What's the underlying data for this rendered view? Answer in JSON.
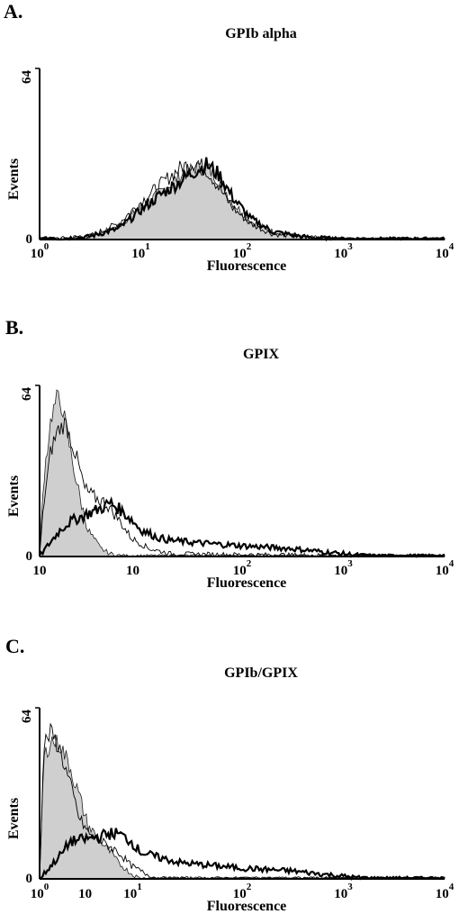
{
  "chart_data": [
    {
      "type": "line",
      "panel_letter": "A.",
      "title": "GPIb alpha",
      "xlabel": "Fluorescence",
      "ylabel": "Events",
      "xscale": "log",
      "xlim": [
        1,
        10000
      ],
      "ylim": [
        0,
        64
      ],
      "ytick_labels": [
        "0",
        "64"
      ],
      "xtick_labels": [
        {
          "base": "10",
          "exp": "0"
        },
        {
          "base": "10",
          "exp": "1"
        },
        {
          "base": "10",
          "exp": "2"
        },
        {
          "base": "10",
          "exp": "3"
        },
        {
          "base": "10",
          "exp": "4"
        }
      ],
      "series": [
        {
          "style": "filled",
          "x": [
            1,
            3,
            6,
            10,
            16,
            25,
            35,
            45,
            60,
            80,
            120,
            200,
            400,
            1000,
            10000
          ],
          "y": [
            0,
            1,
            5,
            12,
            18,
            24,
            27,
            27,
            22,
            14,
            7,
            3,
            1,
            0,
            0
          ]
        },
        {
          "style": "thin",
          "x": [
            1,
            3,
            6,
            10,
            16,
            25,
            35,
            45,
            60,
            80,
            120,
            200,
            400,
            1000,
            10000
          ],
          "y": [
            0,
            1,
            6,
            14,
            21,
            27,
            29,
            26,
            19,
            12,
            6,
            2,
            1,
            0,
            0
          ]
        },
        {
          "style": "thick",
          "x": [
            1,
            3,
            6,
            10,
            16,
            25,
            35,
            45,
            60,
            80,
            120,
            200,
            400,
            1000,
            10000
          ],
          "y": [
            0,
            1,
            4,
            11,
            17,
            22,
            26,
            28,
            24,
            16,
            8,
            3,
            1,
            0,
            0
          ]
        }
      ]
    },
    {
      "type": "line",
      "panel_letter": "B.",
      "title": "GPIX",
      "xlabel": "Fluorescence",
      "ylabel": "Events",
      "xscale": "log",
      "xlim": [
        1,
        10000
      ],
      "ylim": [
        0,
        64
      ],
      "ytick_labels": [
        "0",
        "64"
      ],
      "xtick_labels": [
        {
          "base": "10",
          "exp": ""
        },
        {
          "base": "10",
          "exp": ""
        },
        {
          "base": "10",
          "exp": "2"
        },
        {
          "base": "10",
          "exp": "3"
        },
        {
          "base": "10",
          "exp": "4"
        }
      ],
      "series": [
        {
          "style": "filled",
          "x": [
            1,
            1.1,
            1.3,
            1.5,
            1.7,
            2,
            2.5,
            3,
            4,
            5,
            7,
            10,
            10000
          ],
          "y": [
            0,
            30,
            52,
            60,
            55,
            40,
            22,
            10,
            3,
            1,
            0,
            0,
            0
          ]
        },
        {
          "style": "thin",
          "x": [
            1,
            1.1,
            1.3,
            1.5,
            1.8,
            2.2,
            2.8,
            3.5,
            4.5,
            6,
            8,
            12,
            20,
            10000
          ],
          "y": [
            0,
            20,
            40,
            47,
            50,
            40,
            25,
            22,
            20,
            14,
            7,
            3,
            1,
            0
          ]
        },
        {
          "style": "thick",
          "x": [
            1,
            1.2,
            1.6,
            2,
            3,
            4,
            5,
            6,
            8,
            10,
            15,
            20,
            40,
            100,
            300,
            1000,
            2000,
            10000
          ],
          "y": [
            0,
            4,
            10,
            13,
            16,
            18,
            20,
            18,
            14,
            10,
            7,
            6,
            5,
            4,
            3,
            1,
            0,
            0
          ]
        }
      ]
    },
    {
      "type": "line",
      "panel_letter": "C.",
      "title": "GPIb/GPIX",
      "xlabel": "Fluorescence",
      "ylabel": "Events",
      "xscale": "log",
      "xlim": [
        1,
        10000
      ],
      "ylim": [
        0,
        64
      ],
      "ytick_labels": [
        "0",
        "64"
      ],
      "xtick_labels": [
        {
          "base": "10",
          "exp": "0"
        },
        {
          "base": "10",
          "exp": ""
        },
        {
          "base": "10",
          "exp": "1"
        },
        {
          "base": "10",
          "exp": "2"
        },
        {
          "base": "10",
          "exp": "3"
        },
        {
          "base": "10",
          "exp": "4"
        }
      ],
      "series": [
        {
          "style": "filled",
          "x": [
            1,
            1.1,
            1.3,
            1.6,
            2,
            2.5,
            3,
            4,
            5,
            6,
            8,
            10,
            10000
          ],
          "y": [
            0,
            45,
            52,
            50,
            42,
            30,
            20,
            14,
            10,
            6,
            2,
            0,
            0
          ]
        },
        {
          "style": "thin",
          "x": [
            1,
            1.1,
            1.3,
            1.6,
            2,
            2.5,
            3.2,
            4,
            5,
            6,
            8,
            11,
            15,
            10000
          ],
          "y": [
            0,
            50,
            55,
            48,
            35,
            22,
            16,
            14,
            12,
            10,
            5,
            2,
            0,
            0
          ]
        },
        {
          "style": "thick",
          "x": [
            1,
            1.3,
            1.7,
            2,
            3,
            4,
            5,
            6,
            8,
            10,
            15,
            25,
            50,
            100,
            300,
            1000,
            1800,
            10000
          ],
          "y": [
            0,
            5,
            10,
            14,
            15,
            16,
            17,
            17,
            14,
            10,
            8,
            6,
            5,
            4,
            3,
            1,
            0,
            0
          ]
        }
      ]
    }
  ]
}
